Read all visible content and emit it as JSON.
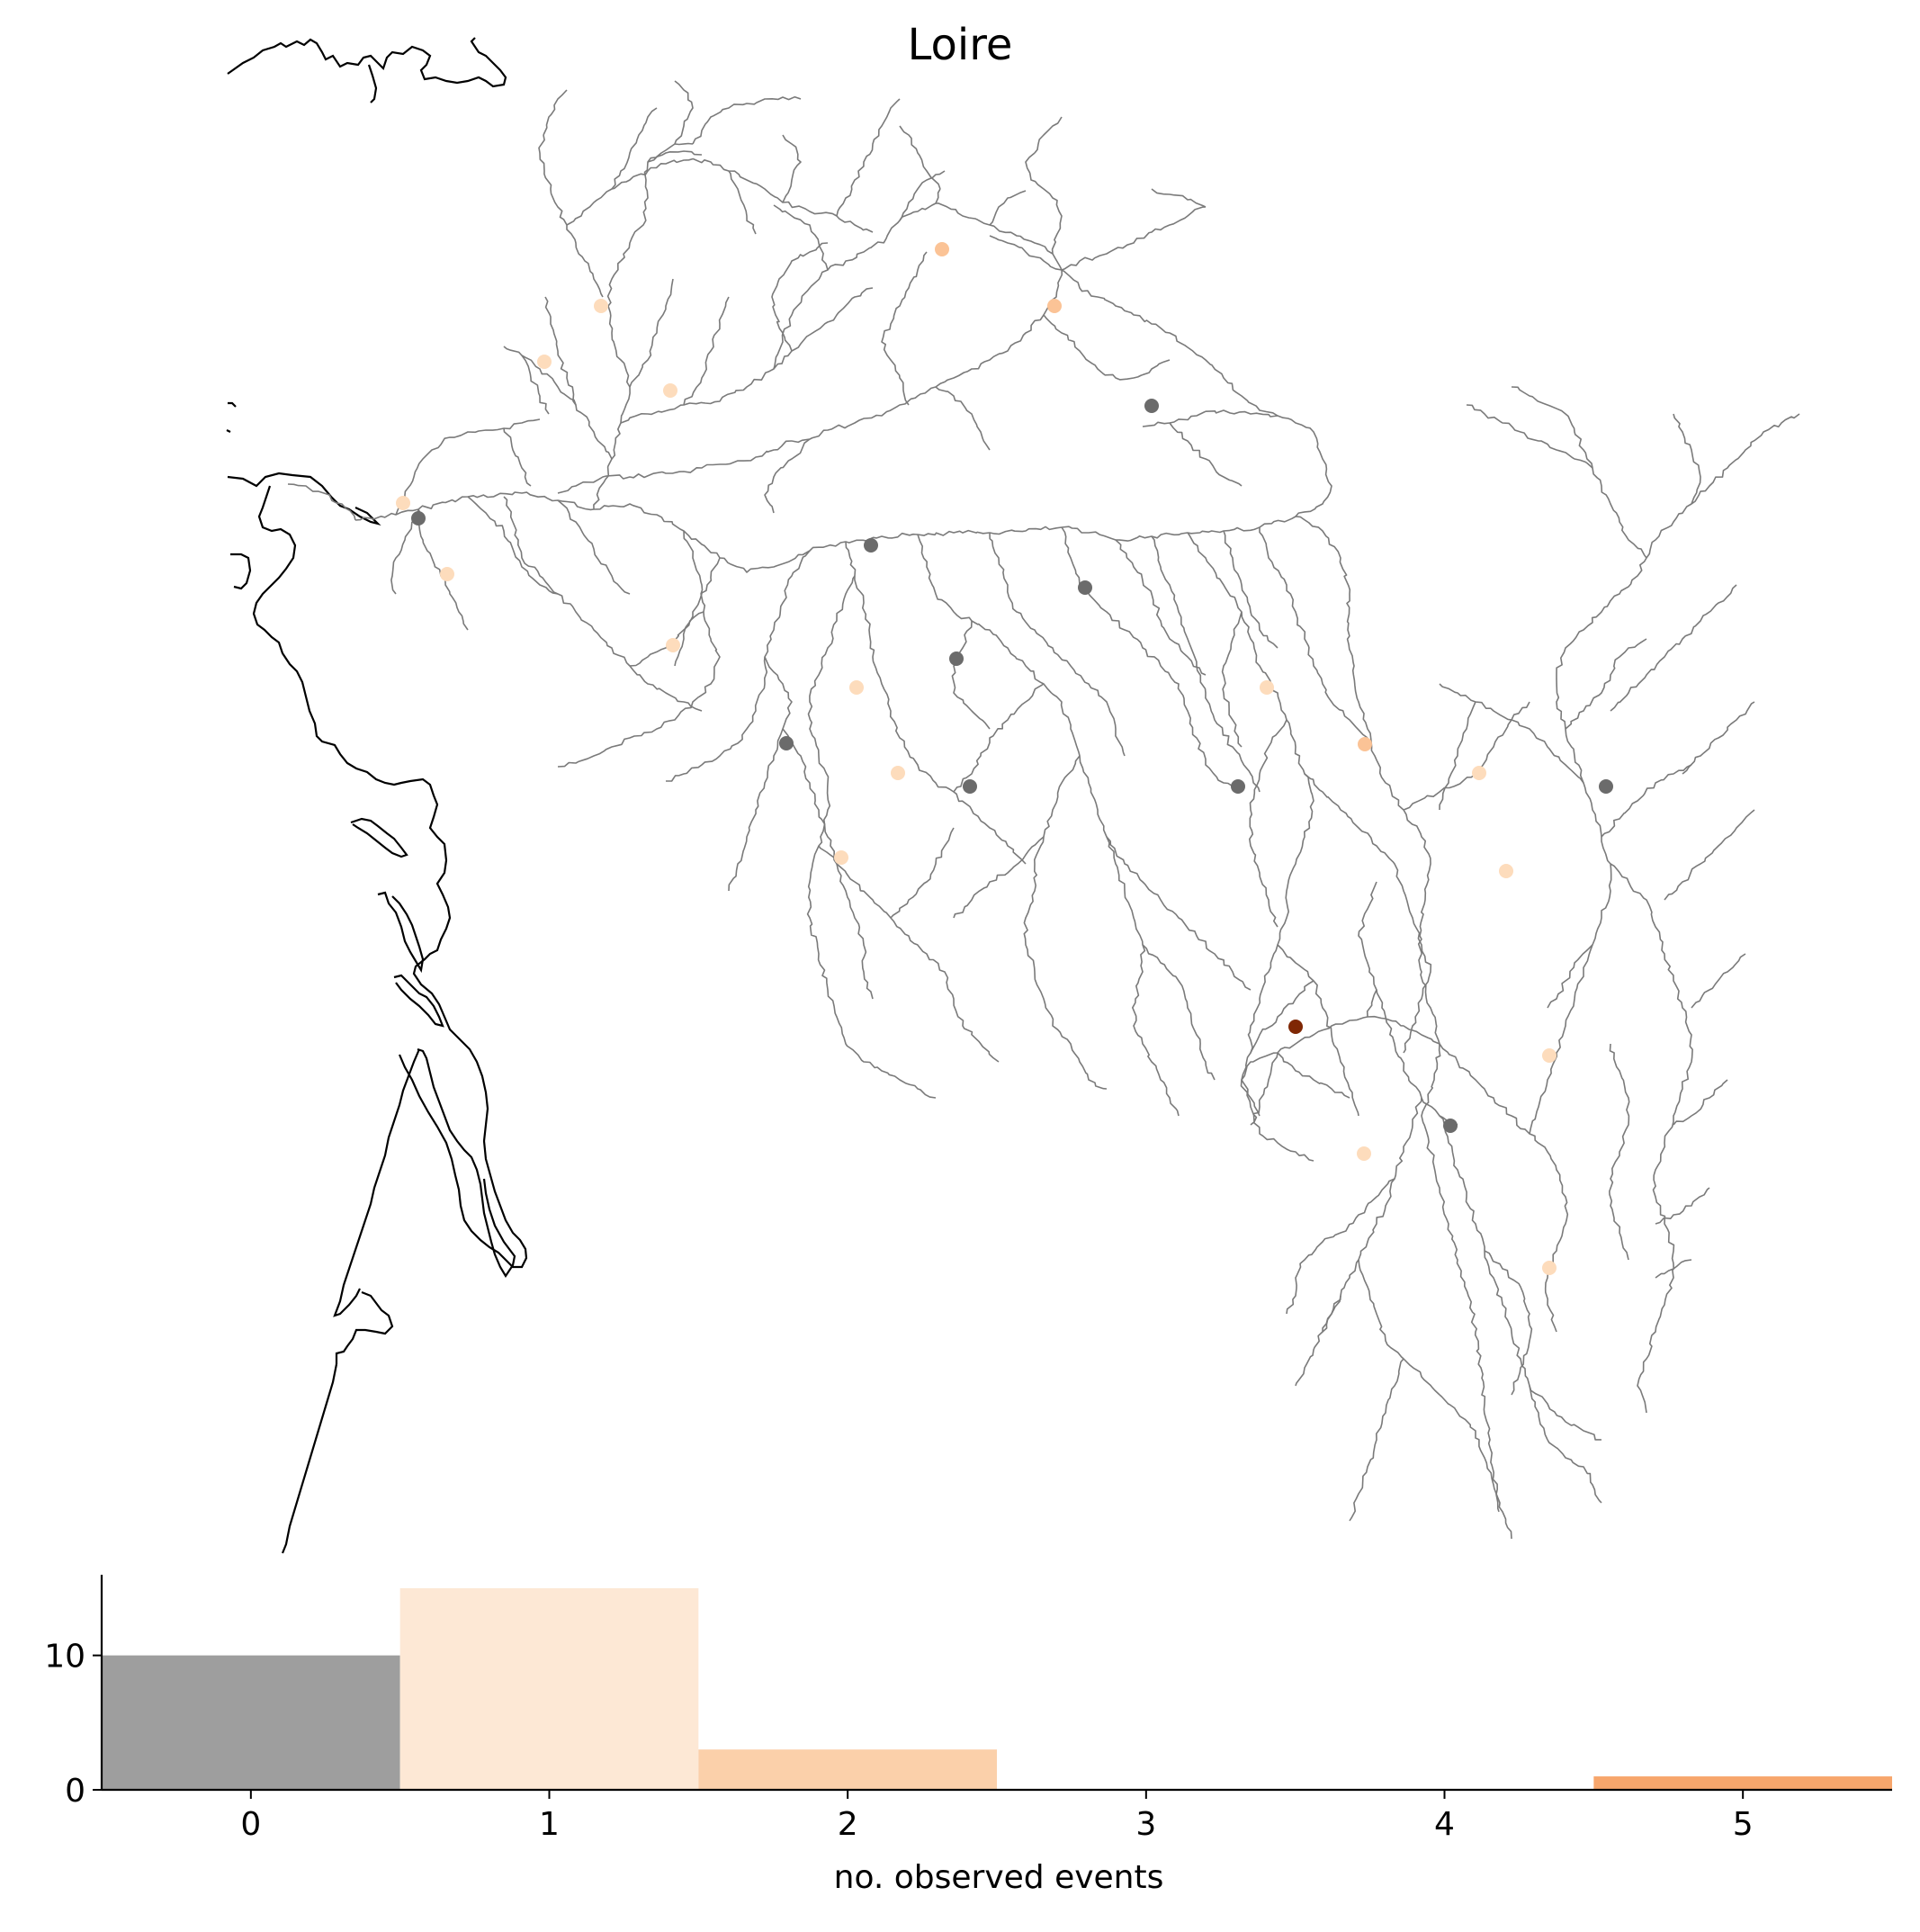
{
  "map": {
    "title": "Loire",
    "colors": {
      "river": "#7a7a7a",
      "coast": "#000000",
      "no_event_station": "#6b6b6b",
      "scale": [
        "#fddcbc",
        "#fbc396",
        "#f7a35e",
        "#f28f3f",
        "#e5681d",
        "#7f2704"
      ]
    },
    "stations": [
      {
        "events": 0,
        "id": "a"
      },
      {
        "events": 0,
        "id": "b"
      },
      {
        "events": 0,
        "id": "c"
      },
      {
        "events": 0,
        "id": "d"
      },
      {
        "events": 0,
        "id": "e"
      },
      {
        "events": 0,
        "id": "f"
      },
      {
        "events": 0,
        "id": "g"
      },
      {
        "events": 0,
        "id": "h"
      },
      {
        "events": 0,
        "id": "i"
      },
      {
        "events": 0,
        "id": "j"
      },
      {
        "events": 1,
        "id": "k"
      },
      {
        "events": 1,
        "id": "l"
      },
      {
        "events": 1,
        "id": "m"
      },
      {
        "events": 1,
        "id": "n"
      },
      {
        "events": 1,
        "id": "o"
      },
      {
        "events": 1,
        "id": "p"
      },
      {
        "events": 1,
        "id": "q"
      },
      {
        "events": 1,
        "id": "r"
      },
      {
        "events": 1,
        "id": "s"
      },
      {
        "events": 1,
        "id": "t"
      },
      {
        "events": 1,
        "id": "u"
      },
      {
        "events": 1,
        "id": "v"
      },
      {
        "events": 1,
        "id": "w"
      },
      {
        "events": 1,
        "id": "x"
      },
      {
        "events": 1,
        "id": "y"
      },
      {
        "events": 2,
        "id": "z"
      },
      {
        "events": 2,
        "id": "aa"
      },
      {
        "events": 2,
        "id": "ab"
      },
      {
        "events": 5,
        "id": "ac"
      }
    ]
  },
  "chart_data": {
    "type": "bar",
    "categories": [
      "0",
      "1",
      "2",
      "3",
      "4",
      "5"
    ],
    "values": [
      10,
      15,
      3,
      0,
      0,
      1
    ],
    "colors": [
      "#9e9e9e",
      "#fde8d5",
      "#fbd0aa",
      "#f9b98b",
      "#f8ab78",
      "#f7a66c"
    ],
    "xlabel": "no. observed events",
    "ylabel": "",
    "ylim": [
      0,
      16
    ],
    "xlim": [
      -0.5,
      5.5
    ],
    "yticks": [
      0,
      10
    ],
    "xticks": [
      0,
      1,
      2,
      3,
      4,
      5
    ]
  }
}
